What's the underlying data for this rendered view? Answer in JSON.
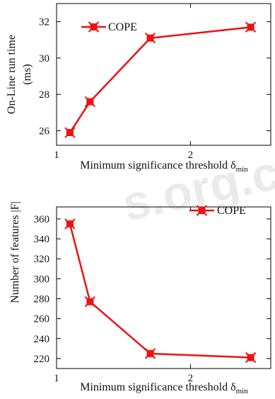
{
  "chart_data": [
    {
      "type": "line",
      "xlabel": "Minimum significance threshold δ",
      "xlabel_sub": "min",
      "ylabel_lines": [
        "On-Line run time",
        "(ms)"
      ],
      "xlim": [
        1.0,
        2.6
      ],
      "ylim": [
        25.2,
        33.0
      ],
      "xticks": [
        1,
        2
      ],
      "yticks": [
        26,
        28,
        30,
        32
      ],
      "legend_position": "top-left",
      "line_color": "#ee1111",
      "series": [
        {
          "name": "COPE",
          "x": [
            1.1,
            1.25,
            1.7,
            2.45
          ],
          "y": [
            25.9,
            27.6,
            31.1,
            31.7
          ]
        }
      ]
    },
    {
      "type": "line",
      "xlabel": "Minimum significance threshold δ",
      "xlabel_sub": "min",
      "ylabel_lines": [
        "Number of features |F|"
      ],
      "xlim": [
        1.0,
        2.6
      ],
      "ylim": [
        210,
        372
      ],
      "xticks": [
        1,
        2
      ],
      "yticks": [
        220,
        240,
        260,
        280,
        300,
        320,
        340,
        360
      ],
      "legend_position": "top-right",
      "line_color": "#ee1111",
      "series": [
        {
          "name": "COPE",
          "x": [
            1.1,
            1.25,
            1.7,
            2.45
          ],
          "y": [
            355,
            277,
            225,
            221
          ]
        }
      ]
    }
  ],
  "watermark": "s.org.c"
}
